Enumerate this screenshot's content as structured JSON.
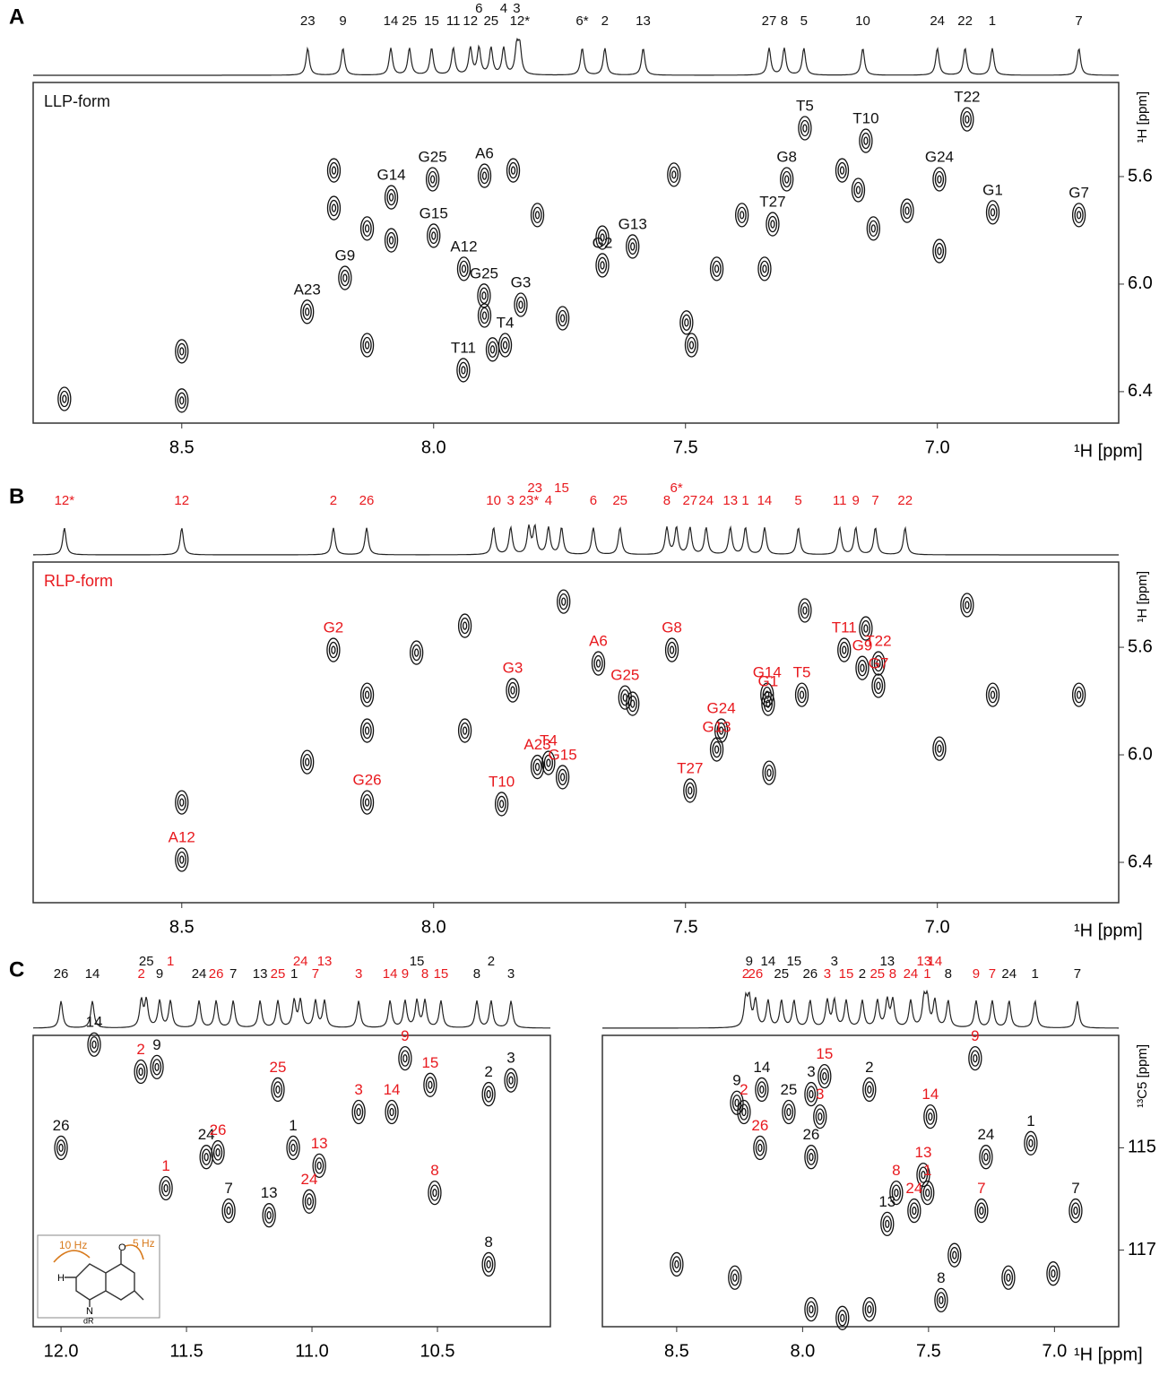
{
  "chart_data": [
    {
      "type": "scatter",
      "panel": "A",
      "form_label": "LLP-form",
      "label_color": "#111111",
      "xlabel": "¹H [ppm]",
      "ylabel": "¹H [ppm]",
      "xlim": [
        8.795,
        6.64
      ],
      "ylim": [
        5.25,
        6.517
      ],
      "xticks": [
        8.5,
        {
          "value": 8,
          "label": "8.0"
        },
        7.5,
        {
          "value": 7,
          "label": "7.0"
        }
      ],
      "yticks": [
        5.6,
        {
          "value": 6,
          "label": "6.0"
        },
        6.4
      ],
      "spectrum_labels": [
        {
          "label": "23",
          "x": 8.25
        },
        {
          "label": "9",
          "x": 8.18
        },
        {
          "label": "14",
          "x": 8.085
        },
        {
          "label": "25",
          "x": 8.048
        },
        {
          "label": "15",
          "x": 8.004
        },
        {
          "label": "11",
          "x": 7.961
        },
        {
          "label": "12",
          "x": 7.927
        },
        {
          "label": "6",
          "x": 7.91
        },
        {
          "label": "25",
          "x": 7.886
        },
        {
          "label": "4",
          "x": 7.861
        },
        {
          "label": "12*",
          "x": 7.829
        },
        {
          "label": "3",
          "x": 7.835
        },
        {
          "label": "6*",
          "x": 7.705
        },
        {
          "label": "2",
          "x": 7.66
        },
        {
          "label": "13",
          "x": 7.584
        },
        {
          "label": "27",
          "x": 7.334
        },
        {
          "label": "8",
          "x": 7.304
        },
        {
          "label": "5",
          "x": 7.265
        },
        {
          "label": "10",
          "x": 7.148
        },
        {
          "label": "24",
          "x": 7.0
        },
        {
          "label": "22",
          "x": 6.945
        },
        {
          "label": "1",
          "x": 6.891
        },
        {
          "label": "7",
          "x": 6.719
        }
      ],
      "assigned": [
        {
          "label": "T5",
          "x": 7.263,
          "y": 5.42
        },
        {
          "label": "T22",
          "x": 6.941,
          "y": 5.387
        },
        {
          "label": "T10",
          "x": 7.142,
          "y": 5.467
        },
        {
          "label": "G25",
          "x": 8.002,
          "y": 5.61
        },
        {
          "label": "A6",
          "x": 7.899,
          "y": 5.597
        },
        {
          "label": "G8",
          "x": 7.299,
          "y": 5.61
        },
        {
          "label": "G24",
          "x": 6.996,
          "y": 5.61
        },
        {
          "label": "G14",
          "x": 8.084,
          "y": 5.677
        },
        {
          "label": "A12",
          "x": 7.94,
          "y": 5.943
        },
        {
          "label": "G15",
          "x": 8.0,
          "y": 5.82
        },
        {
          "label": "G13",
          "x": 7.605,
          "y": 5.86
        },
        {
          "label": "T27",
          "x": 7.327,
          "y": 5.777
        },
        {
          "label": "G1",
          "x": 6.89,
          "y": 5.733
        },
        {
          "label": "G7",
          "x": 6.719,
          "y": 5.743
        },
        {
          "label": "G9",
          "x": 8.176,
          "y": 5.977
        },
        {
          "label": "G2",
          "x": 7.665,
          "y": 5.93
        },
        {
          "label": "G25",
          "x": 7.9,
          "y": 6.043
        },
        {
          "label": "G3",
          "x": 7.827,
          "y": 6.077
        },
        {
          "label": "A23",
          "x": 8.251,
          "y": 6.103
        },
        {
          "label": "T4",
          "x": 7.858,
          "y": 6.227
        },
        {
          "label": "T11",
          "x": 7.941,
          "y": 6.32
        }
      ],
      "unassigned": {
        "x": [
          8.733,
          8.5,
          8.5,
          8.198,
          8.198,
          8.132,
          8.132,
          8.084,
          7.899,
          7.883,
          7.842,
          7.794,
          7.744,
          7.665,
          7.523,
          7.498,
          7.488,
          7.438,
          7.388,
          7.343,
          7.189,
          7.157,
          7.127,
          7.06,
          6.996
        ],
        "y": [
          6.427,
          6.433,
          6.25,
          5.577,
          5.717,
          5.793,
          6.227,
          5.837,
          6.117,
          6.243,
          5.577,
          5.743,
          6.127,
          5.827,
          5.593,
          6.143,
          6.227,
          5.943,
          5.743,
          5.943,
          5.577,
          5.65,
          5.793,
          5.727,
          5.877
        ]
      }
    },
    {
      "type": "scatter",
      "panel": "B",
      "form_label": "RLP-form",
      "label_color": "#e8191e",
      "xlabel": "¹H [ppm]",
      "ylabel": "¹H [ppm]",
      "xlim": [
        8.795,
        6.64
      ],
      "ylim": [
        5.283,
        6.55
      ],
      "xticks": [
        8.5,
        {
          "value": 8,
          "label": "8.0"
        },
        7.5,
        {
          "value": 7,
          "label": "7.0"
        }
      ],
      "yticks": [
        5.6,
        {
          "value": 6,
          "label": "6.0"
        },
        6.4
      ],
      "spectrum_labels": [
        {
          "label": "12*",
          "x": 8.733
        },
        {
          "label": "12",
          "x": 8.5
        },
        {
          "label": "2",
          "x": 8.199
        },
        {
          "label": "26",
          "x": 8.133
        },
        {
          "label": "10",
          "x": 7.881
        },
        {
          "label": "3",
          "x": 7.847
        },
        {
          "label": "23*",
          "x": 7.811
        },
        {
          "label": "23",
          "x": 7.799
        },
        {
          "label": "4",
          "x": 7.772
        },
        {
          "label": "15",
          "x": 7.746
        },
        {
          "label": "6",
          "x": 7.683
        },
        {
          "label": "25",
          "x": 7.63
        },
        {
          "label": "8",
          "x": 7.537
        },
        {
          "label": "6*",
          "x": 7.518
        },
        {
          "label": "27",
          "x": 7.491
        },
        {
          "label": "24",
          "x": 7.459
        },
        {
          "label": "13",
          "x": 7.411
        },
        {
          "label": "1",
          "x": 7.381
        },
        {
          "label": "14",
          "x": 7.343
        },
        {
          "label": "5",
          "x": 7.276
        },
        {
          "label": "11",
          "x": 7.194
        },
        {
          "label": "9",
          "x": 7.162
        },
        {
          "label": "7",
          "x": 7.123
        },
        {
          "label": "22",
          "x": 7.064
        }
      ],
      "assigned": [
        {
          "label": "G2",
          "x": 8.199,
          "y": 5.61
        },
        {
          "label": "G8",
          "x": 7.527,
          "y": 5.61
        },
        {
          "label": "A6",
          "x": 7.673,
          "y": 5.66
        },
        {
          "label": "G14",
          "x": 7.338,
          "y": 5.777
        },
        {
          "label": "T11",
          "x": 7.185,
          "y": 5.61
        },
        {
          "label": "T22",
          "x": 7.117,
          "y": 5.66
        },
        {
          "label": "G9",
          "x": 7.149,
          "y": 5.677
        },
        {
          "label": "T5",
          "x": 7.269,
          "y": 5.777
        },
        {
          "label": "G7",
          "x": 7.117,
          "y": 5.743
        },
        {
          "label": "G25",
          "x": 7.62,
          "y": 5.787
        },
        {
          "label": "G1",
          "x": 7.336,
          "y": 5.81
        },
        {
          "label": "G24",
          "x": 7.429,
          "y": 5.91
        },
        {
          "label": "G13",
          "x": 7.438,
          "y": 5.98
        },
        {
          "label": "G3",
          "x": 7.843,
          "y": 5.76
        },
        {
          "label": "T4",
          "x": 7.772,
          "y": 6.03
        },
        {
          "label": "A23",
          "x": 7.794,
          "y": 6.045
        },
        {
          "label": "G15",
          "x": 7.744,
          "y": 6.083
        },
        {
          "label": "T27",
          "x": 7.491,
          "y": 6.133
        },
        {
          "label": "T10",
          "x": 7.865,
          "y": 6.183
        },
        {
          "label": "G26",
          "x": 8.132,
          "y": 6.177
        },
        {
          "label": "A12",
          "x": 8.5,
          "y": 6.39
        }
      ],
      "unassigned": {
        "x": [
          8.5,
          8.251,
          8.132,
          8.034,
          7.938,
          7.938,
          7.742,
          7.605,
          7.334,
          7.263,
          7.142,
          6.941,
          6.89,
          6.719,
          6.996,
          8.132
        ],
        "y": [
          6.177,
          6.027,
          5.91,
          5.62,
          5.52,
          5.91,
          5.43,
          5.81,
          6.067,
          5.463,
          5.53,
          5.443,
          5.777,
          5.777,
          5.977,
          5.777
        ]
      }
    },
    {
      "type": "scatter",
      "panel": "C",
      "label_color": "#111111",
      "xlim": [
        12.111,
        10.05
      ],
      "ylim": [
        112.8,
        118.5
      ],
      "xticks": [
        {
          "value": 12,
          "label": "12.0"
        },
        11.5,
        {
          "value": 11,
          "label": "11.0"
        },
        10.5
      ],
      "inset": {
        "coupling_a": "10 Hz",
        "coupling_b": "5 Hz",
        "oxygen": "O",
        "ribose": "dR",
        "nitrogen": "N",
        "hydrogen": "H"
      },
      "spectrum_labels": [
        {
          "label": "26",
          "x": 12.0
        },
        {
          "label": "14",
          "x": 11.875
        },
        {
          "label": "2",
          "x": 11.68,
          "color": "#e8191e"
        },
        {
          "label": "25",
          "x": 11.66
        },
        {
          "label": "9",
          "x": 11.607
        },
        {
          "label": "1",
          "x": 11.564,
          "color": "#e8191e"
        },
        {
          "label": "24",
          "x": 11.45
        },
        {
          "label": "26",
          "x": 11.382,
          "color": "#e8191e"
        },
        {
          "label": "7",
          "x": 11.314
        },
        {
          "label": "13",
          "x": 11.207
        },
        {
          "label": "25",
          "x": 11.136,
          "color": "#e8191e"
        },
        {
          "label": "1",
          "x": 11.071
        },
        {
          "label": "24",
          "x": 11.046,
          "color": "#e8191e"
        },
        {
          "label": "7",
          "x": 10.986,
          "color": "#e8191e"
        },
        {
          "label": "13",
          "x": 10.95,
          "color": "#e8191e"
        },
        {
          "label": "3",
          "x": 10.814,
          "color": "#e8191e"
        },
        {
          "label": "14",
          "x": 10.689,
          "color": "#e8191e"
        },
        {
          "label": "9",
          "x": 10.629,
          "color": "#e8191e"
        },
        {
          "label": "15",
          "x": 10.582
        },
        {
          "label": "8",
          "x": 10.55,
          "color": "#e8191e"
        },
        {
          "label": "15",
          "x": 10.486,
          "color": "#e8191e"
        },
        {
          "label": "8",
          "x": 10.343
        },
        {
          "label": "2",
          "x": 10.286
        },
        {
          "label": "3",
          "x": 10.207
        }
      ],
      "assigned": [
        {
          "label": "14",
          "x": 11.868,
          "y": 112.98
        },
        {
          "label": "9",
          "x": 11.618,
          "y": 113.42
        },
        {
          "label": "2",
          "x": 11.682,
          "y": 113.51,
          "color": "#e8191e"
        },
        {
          "label": "26",
          "x": 12.0,
          "y": 115.0
        },
        {
          "label": "24",
          "x": 11.421,
          "y": 115.18
        },
        {
          "label": "26",
          "x": 11.375,
          "y": 115.09,
          "color": "#e8191e"
        },
        {
          "label": "7",
          "x": 11.332,
          "y": 116.23
        },
        {
          "label": "1",
          "x": 11.582,
          "y": 115.79,
          "color": "#e8191e"
        },
        {
          "label": "13",
          "x": 11.171,
          "y": 116.32
        },
        {
          "label": "1",
          "x": 11.075,
          "y": 115.0
        },
        {
          "label": "25",
          "x": 11.136,
          "y": 113.86,
          "color": "#e8191e"
        },
        {
          "label": "13",
          "x": 10.971,
          "y": 115.35,
          "color": "#e8191e"
        },
        {
          "label": "24",
          "x": 11.011,
          "y": 116.05,
          "color": "#e8191e"
        },
        {
          "label": "3",
          "x": 10.814,
          "y": 114.3,
          "color": "#e8191e"
        },
        {
          "label": "14",
          "x": 10.682,
          "y": 114.3,
          "color": "#e8191e"
        },
        {
          "label": "9",
          "x": 10.629,
          "y": 113.25,
          "color": "#e8191e"
        },
        {
          "label": "15",
          "x": 10.529,
          "y": 113.77,
          "color": "#e8191e"
        },
        {
          "label": "8",
          "x": 10.511,
          "y": 115.88,
          "color": "#e8191e"
        },
        {
          "label": "2",
          "x": 10.296,
          "y": 113.95
        },
        {
          "label": "3",
          "x": 10.207,
          "y": 113.68
        },
        {
          "label": "8",
          "x": 10.296,
          "y": 117.28
        }
      ],
      "unassigned": {
        "x": [],
        "y": []
      }
    },
    {
      "type": "scatter",
      "label_color": "#111111",
      "xlabel": "¹H [ppm]",
      "ylabel": "¹³C5 [ppm]",
      "xlim": [
        8.795,
        6.745
      ],
      "ylim": [
        112.8,
        118.5
      ],
      "xticks": [
        8.5,
        {
          "value": 8,
          "label": "8.0"
        },
        7.5,
        {
          "value": 7,
          "label": "7.0"
        }
      ],
      "yticks": [
        115,
        117
      ],
      "spectrum_labels": [
        {
          "label": "2",
          "x": 8.226,
          "color": "#e8191e"
        },
        {
          "label": "9",
          "x": 8.212
        },
        {
          "label": "26",
          "x": 8.187,
          "color": "#e8191e"
        },
        {
          "label": "14",
          "x": 8.137
        },
        {
          "label": "25",
          "x": 8.084
        },
        {
          "label": "15",
          "x": 8.034
        },
        {
          "label": "26",
          "x": 7.97
        },
        {
          "label": "3",
          "x": 7.902,
          "color": "#e8191e"
        },
        {
          "label": "3",
          "x": 7.874
        },
        {
          "label": "15",
          "x": 7.827,
          "color": "#e8191e"
        },
        {
          "label": "2",
          "x": 7.763
        },
        {
          "label": "25",
          "x": 7.703,
          "color": "#e8191e"
        },
        {
          "label": "13",
          "x": 7.664
        },
        {
          "label": "8",
          "x": 7.642,
          "color": "#e8191e"
        },
        {
          "label": "24",
          "x": 7.571,
          "color": "#e8191e"
        },
        {
          "label": "13",
          "x": 7.518,
          "color": "#e8191e"
        },
        {
          "label": "1",
          "x": 7.505,
          "color": "#e8191e"
        },
        {
          "label": "14",
          "x": 7.475,
          "color": "#e8191e"
        },
        {
          "label": "8",
          "x": 7.422
        },
        {
          "label": "9",
          "x": 7.311,
          "color": "#e8191e"
        },
        {
          "label": "7",
          "x": 7.247,
          "color": "#e8191e"
        },
        {
          "label": "24",
          "x": 7.18
        },
        {
          "label": "1",
          "x": 7.077
        },
        {
          "label": "7",
          "x": 6.909
        }
      ],
      "assigned": [
        {
          "label": "9",
          "x": 8.261,
          "y": 114.12
        },
        {
          "label": "2",
          "x": 8.233,
          "y": 114.3,
          "color": "#e8191e"
        },
        {
          "label": "14",
          "x": 8.162,
          "y": 113.86
        },
        {
          "label": "26",
          "x": 8.169,
          "y": 115.0,
          "color": "#e8191e"
        },
        {
          "label": "25",
          "x": 8.055,
          "y": 114.3
        },
        {
          "label": "3",
          "x": 7.966,
          "y": 113.95
        },
        {
          "label": "15",
          "x": 7.913,
          "y": 113.6,
          "color": "#e8191e"
        },
        {
          "label": "2",
          "x": 7.735,
          "y": 113.86
        },
        {
          "label": "3",
          "x": 7.931,
          "y": 114.39,
          "color": "#e8191e"
        },
        {
          "label": "26",
          "x": 7.966,
          "y": 115.18
        },
        {
          "label": "14",
          "x": 7.493,
          "y": 114.39,
          "color": "#e8191e"
        },
        {
          "label": "24",
          "x": 7.272,
          "y": 115.18
        },
        {
          "label": "1",
          "x": 7.094,
          "y": 114.91
        },
        {
          "label": "9",
          "x": 7.315,
          "y": 113.25,
          "color": "#e8191e"
        },
        {
          "label": "13",
          "x": 7.521,
          "y": 115.53,
          "color": "#e8191e"
        },
        {
          "label": "1",
          "x": 7.504,
          "y": 115.88,
          "color": "#e8191e"
        },
        {
          "label": "8",
          "x": 7.628,
          "y": 115.88,
          "color": "#e8191e"
        },
        {
          "label": "24",
          "x": 7.557,
          "y": 116.23,
          "color": "#e8191e"
        },
        {
          "label": "13",
          "x": 7.664,
          "y": 116.49
        },
        {
          "label": "7",
          "x": 7.29,
          "y": 116.23,
          "color": "#e8191e"
        },
        {
          "label": "7",
          "x": 6.916,
          "y": 116.23
        },
        {
          "label": "8",
          "x": 7.45,
          "y": 117.98
        }
      ],
      "unassigned": {
        "x": [
          8.5,
          8.269,
          7.966,
          7.842,
          7.735,
          7.183,
          7.005,
          7.397
        ],
        "y": [
          117.28,
          117.54,
          118.16,
          118.33,
          118.16,
          117.54,
          117.46,
          117.1
        ]
      }
    }
  ]
}
